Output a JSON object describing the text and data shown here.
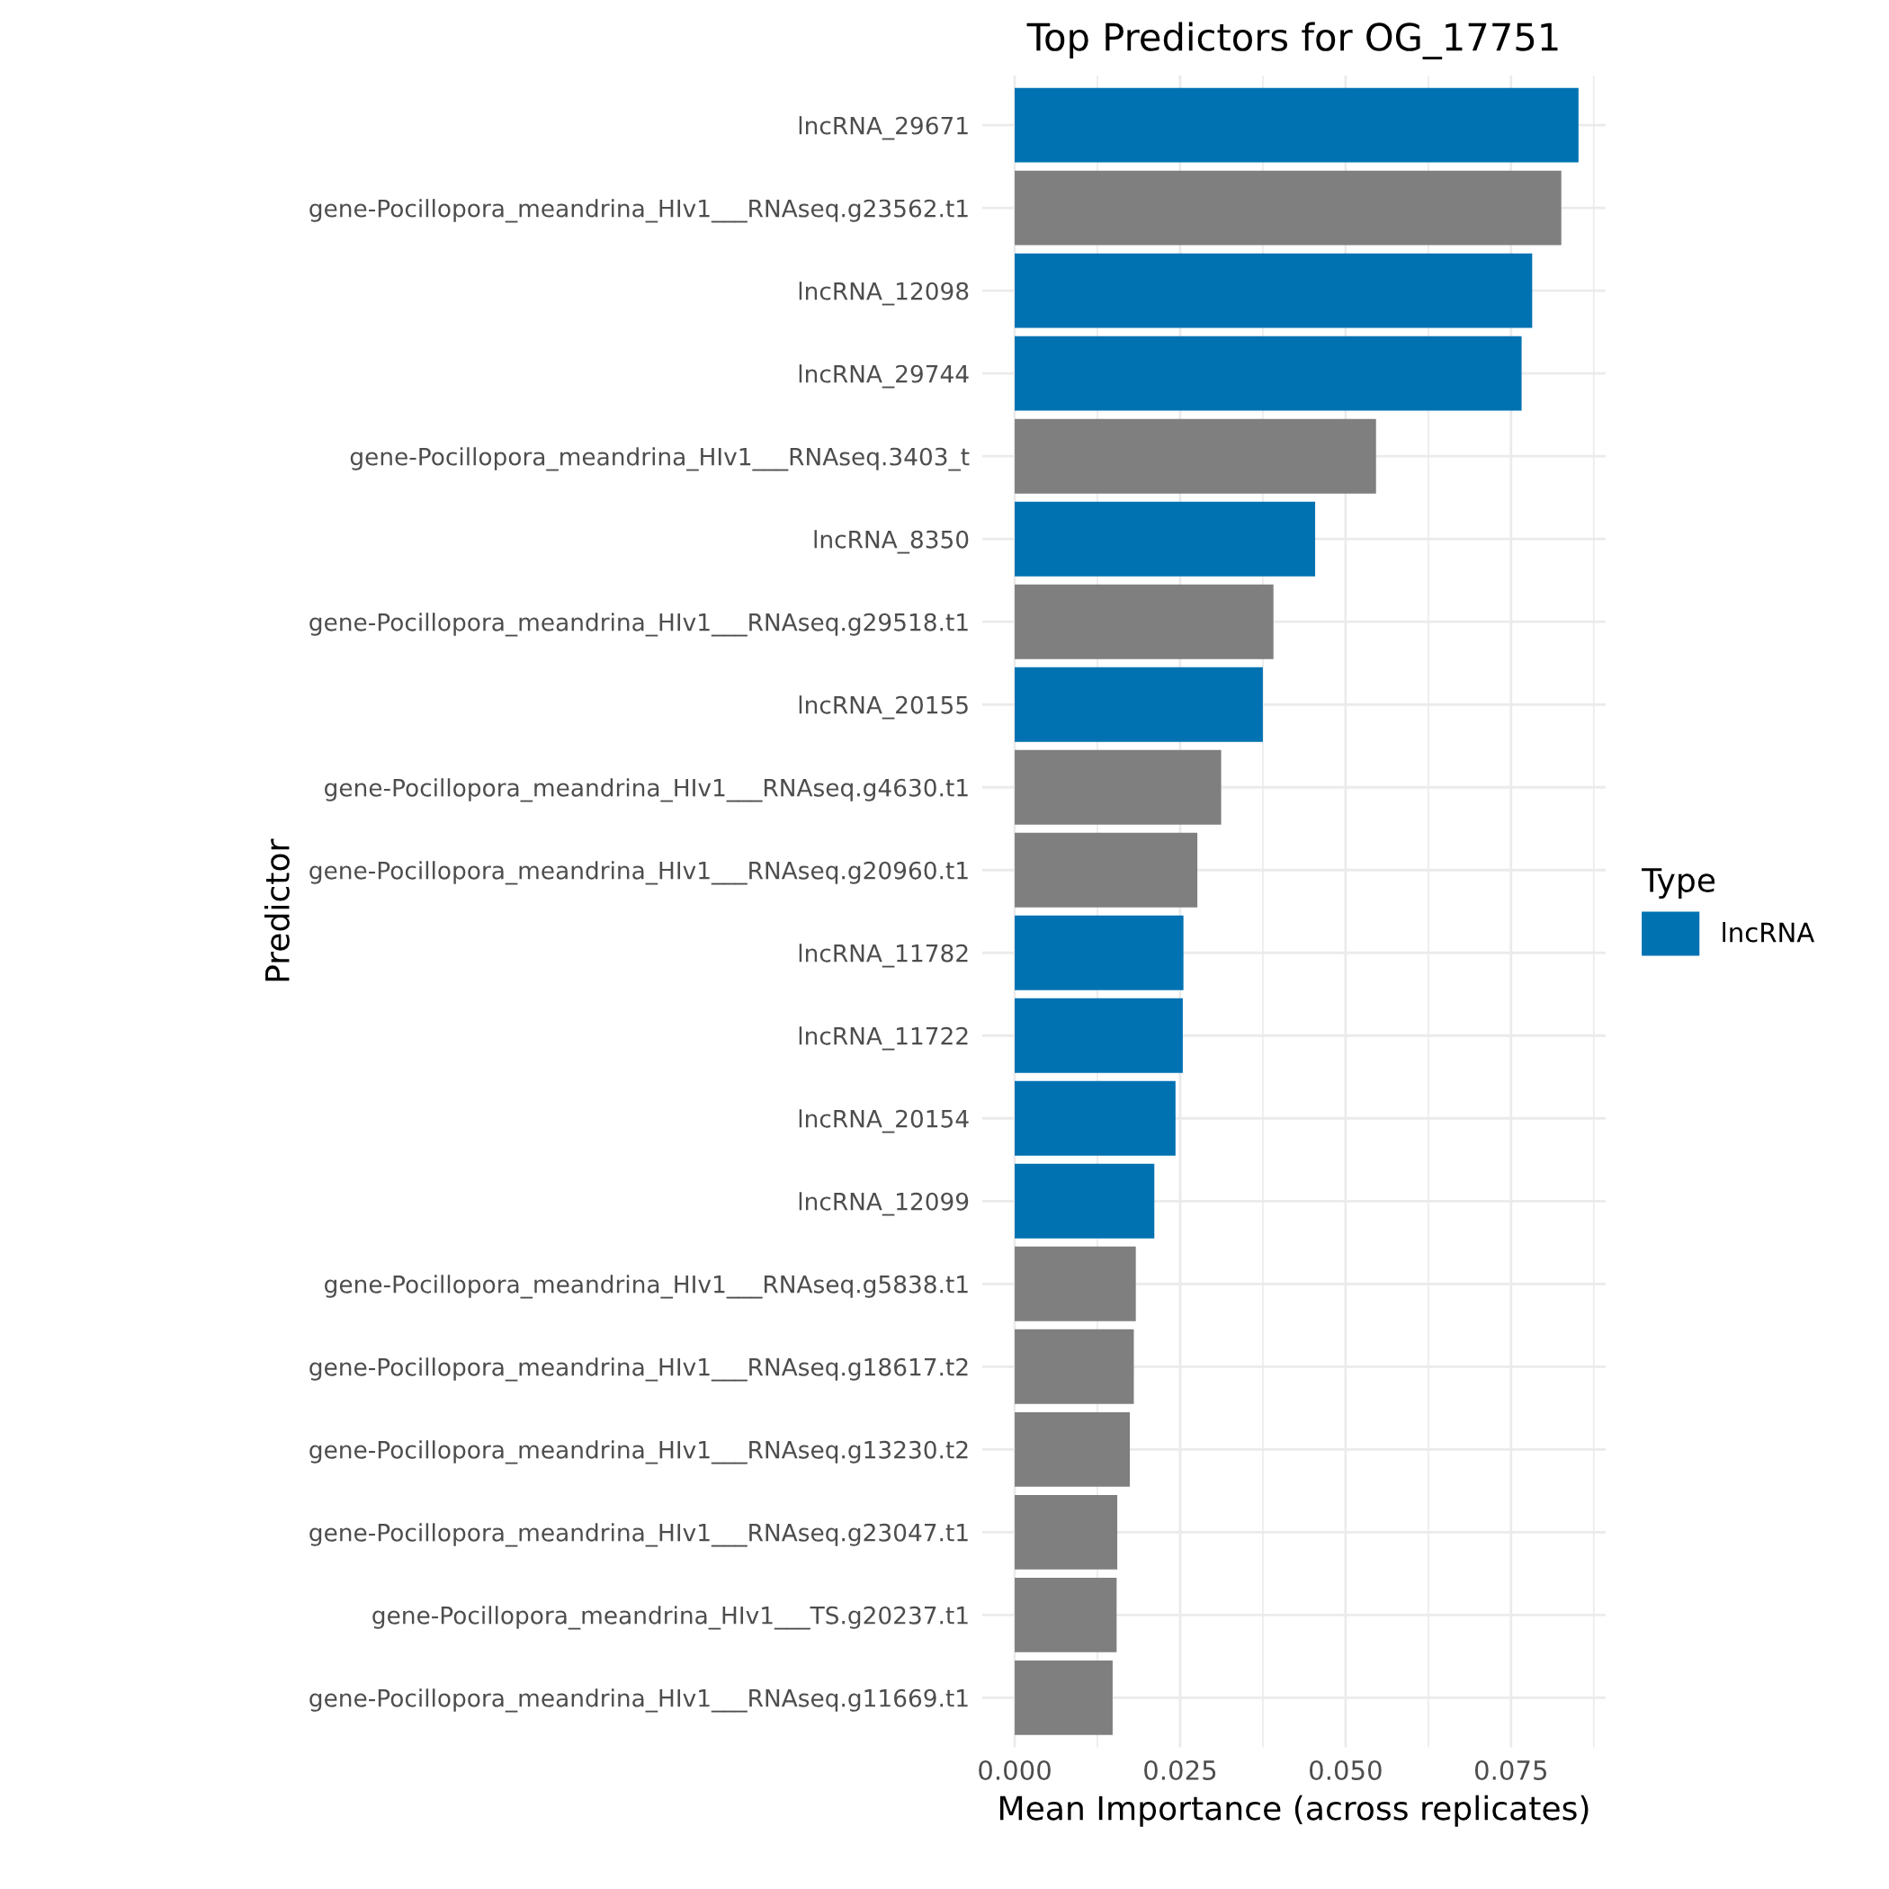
{
  "chart_data": {
    "type": "bar",
    "orientation": "horizontal",
    "title": "Top Predictors for OG_17751",
    "xlabel": "Mean Importance (across replicates)",
    "ylabel": "Predictor",
    "legend_title": "Type",
    "legend": "right",
    "categories": [
      "lncRNA_29671",
      "gene-Pocillopora_meandrina_HIv1___RNAseq.g23562.t1",
      "lncRNA_12098",
      "lncRNA_29744",
      "gene-Pocillopora_meandrina_HIv1___RNAseq.3403_t",
      "lncRNA_8350",
      "gene-Pocillopora_meandrina_HIv1___RNAseq.g29518.t1",
      "lncRNA_20155",
      "gene-Pocillopora_meandrina_HIv1___RNAseq.g4630.t1",
      "gene-Pocillopora_meandrina_HIv1___RNAseq.g20960.t1",
      "lncRNA_11782",
      "lncRNA_11722",
      "lncRNA_20154",
      "lncRNA_12099",
      "gene-Pocillopora_meandrina_HIv1___RNAseq.g5838.t1",
      "gene-Pocillopora_meandrina_HIv1___RNAseq.g18617.t2",
      "gene-Pocillopora_meandrina_HIv1___RNAseq.g13230.t2",
      "gene-Pocillopora_meandrina_HIv1___RNAseq.g23047.t1",
      "gene-Pocillopora_meandrina_HIv1___TS.g20237.t1",
      "gene-Pocillopora_meandrina_HIv1___RNAseq.g11669.t1"
    ],
    "series": [
      {
        "name": "lncRNA",
        "color": "#0072b2",
        "values": [
          0.0852,
          null,
          0.0782,
          0.0766,
          null,
          0.0454,
          null,
          0.0375,
          null,
          null,
          0.0255,
          0.0254,
          0.0243,
          0.0211,
          null,
          null,
          null,
          null,
          null,
          null
        ]
      },
      {
        "color": "#7f7f7f",
        "values": [
          null,
          0.0826,
          null,
          null,
          0.0546,
          null,
          0.0391,
          null,
          0.0312,
          0.0276,
          null,
          null,
          null,
          null,
          0.0183,
          0.018,
          0.0174,
          0.0155,
          0.0154,
          0.0148
        ]
      }
    ],
    "xlim": [
      -0.0049,
      0.0893
    ],
    "xticks": [
      {
        "value": 0,
        "label": "0.000"
      },
      {
        "value": 0.025,
        "label": "0.025"
      },
      {
        "value": 0.05,
        "label": "0.050"
      },
      {
        "value": 0.075,
        "label": "0.075"
      }
    ],
    "grid": true
  }
}
